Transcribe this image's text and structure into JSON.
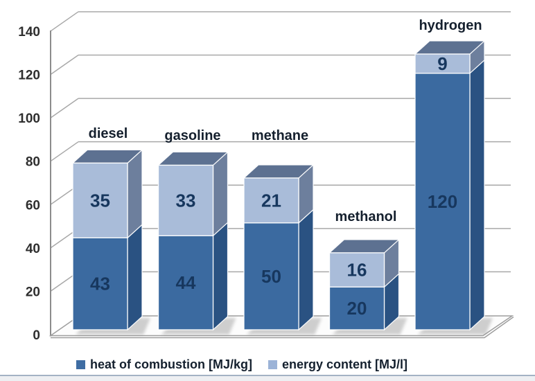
{
  "chart_data": {
    "type": "bar",
    "subtype": "3d-stacked-column",
    "title": "",
    "categories": [
      "diesel",
      "gasoline",
      "methane",
      "methanol",
      "hydrogen"
    ],
    "series": [
      {
        "name": "heat of combustion [MJ/kg]",
        "values": [
          43,
          44,
          50,
          20,
          120
        ]
      },
      {
        "name": "energy content [MJ/l]",
        "values": [
          35,
          33,
          21,
          16,
          9
        ]
      }
    ],
    "totals": [
      78,
      77,
      71,
      36,
      129
    ],
    "y_axis": {
      "min": 0,
      "max": 140,
      "step": 20,
      "tick_labels": [
        "0",
        "20",
        "40",
        "60",
        "80",
        "100",
        "120",
        "140"
      ]
    },
    "grid": true,
    "legend_position": "bottom"
  },
  "legend": {
    "items": [
      {
        "label": "heat of combustion [MJ/kg]",
        "swatch": "#3f6da3"
      },
      {
        "label": "energy content [MJ/l]",
        "swatch": "#9cb3d7"
      }
    ]
  },
  "colors": {
    "series1_front": "#3b6aa0",
    "series1_side": "#2a5282",
    "series2_front": "#a9bcd9",
    "series2_side": "#6d7f9d",
    "bar_top": "#5d7191",
    "value_label": "#17375e",
    "category_label": "#15202e",
    "axis_label": "#2e2e2e",
    "gridline": "#a8a8a8",
    "axis_line": "#8c8c8c",
    "floor_fill": "#fcfcfc",
    "floor_stroke": "#9e9e9e",
    "legend_text": "#14202e",
    "bottom_rule": "#a3b2c4",
    "bottom_strip": "#edeff2",
    "shadow": "#909090",
    "edge_white": "rgba(255,255,255,0.95)"
  }
}
